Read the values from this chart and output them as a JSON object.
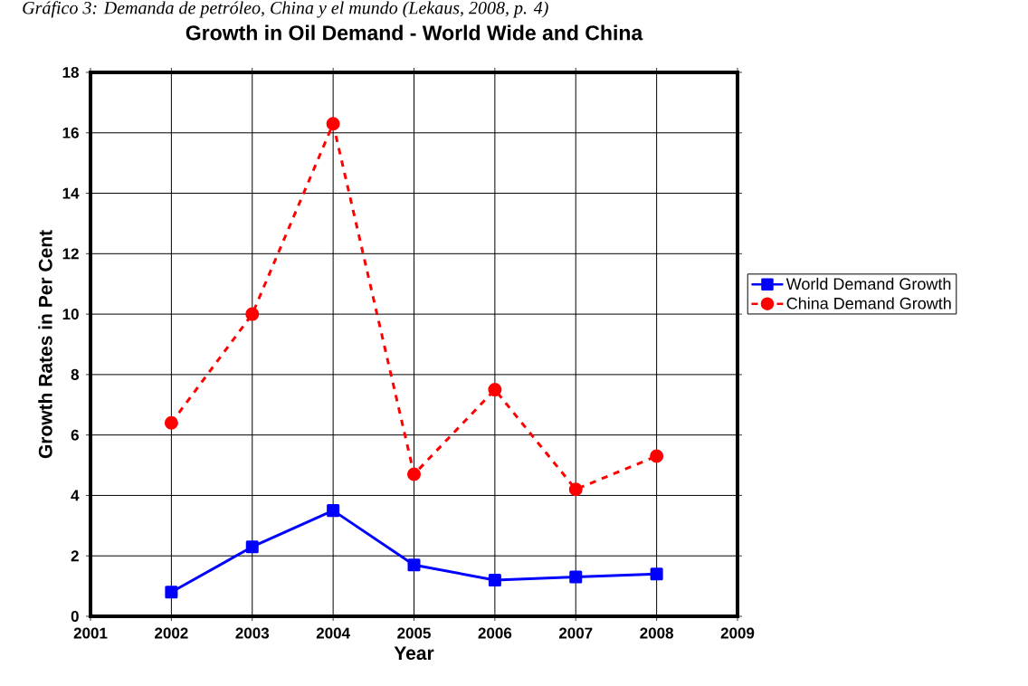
{
  "chart_data": {
    "type": "line",
    "title": "Growth in Oil Demand - World Wide and China",
    "xlabel": "Year",
    "ylabel": "Growth Rates in Per Cent",
    "annotations": [
      "Gráfico 3: Demanda de petróleo, China y el mundo (Lekaus, 2008, p. 4)"
    ],
    "x": [
      2002,
      2003,
      2004,
      2005,
      2006,
      2007,
      2008
    ],
    "series": [
      {
        "name": "World Demand Growth",
        "color": "#0000ff",
        "marker": "square",
        "line_style": "solid",
        "values": [
          0.8,
          2.3,
          3.5,
          1.7,
          1.2,
          1.3,
          1.4
        ]
      },
      {
        "name": "China Demand Growth",
        "color": "#ff0000",
        "marker": "circle",
        "line_style": "dashed",
        "values": [
          6.4,
          10.0,
          16.3,
          4.7,
          7.5,
          4.2,
          5.3
        ]
      }
    ],
    "xlim": [
      2001,
      2009
    ],
    "xticks": [
      2001,
      2002,
      2003,
      2004,
      2005,
      2006,
      2007,
      2008,
      2009
    ],
    "ylim": [
      0,
      18
    ],
    "yticks": [
      0,
      2,
      4,
      6,
      8,
      10,
      12,
      14,
      16,
      18
    ],
    "grid": true,
    "legend": "right"
  }
}
